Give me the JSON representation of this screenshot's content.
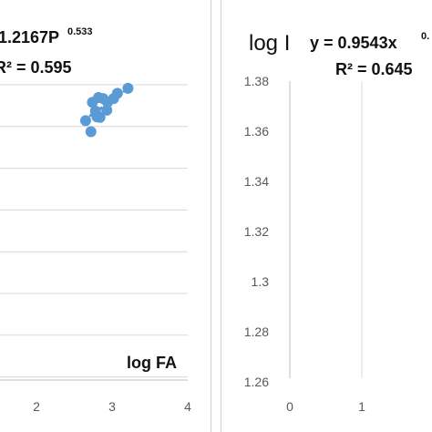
{
  "chart_data": [
    {
      "type": "scatter",
      "equation_main": "1.2167P",
      "equation_exp": "0.533",
      "r2_label": "R² = 0.595",
      "xlabel": "log FA",
      "x_ticks": [
        "2",
        "3",
        "4"
      ],
      "xlim": [
        1.05,
        4
      ],
      "grid": "horizontal",
      "trendline": "dotted",
      "color": "#5b9bd5",
      "points": [
        {
          "x": 2.65,
          "y": 0.74
        },
        {
          "x": 2.72,
          "y": 0.475
        },
        {
          "x": 2.74,
          "y": 1.18
        },
        {
          "x": 2.78,
          "y": 0.97
        },
        {
          "x": 2.8,
          "y": 0.83
        },
        {
          "x": 2.82,
          "y": 1.295
        },
        {
          "x": 2.84,
          "y": 0.82
        },
        {
          "x": 2.88,
          "y": 1.27
        },
        {
          "x": 2.93,
          "y": 0.99
        },
        {
          "x": 2.94,
          "y": 1.18
        },
        {
          "x": 3.02,
          "y": 1.27
        },
        {
          "x": 3.07,
          "y": 1.395
        },
        {
          "x": 3.21,
          "y": 1.515
        }
      ],
      "trend_line": [
        {
          "x": 2.65,
          "y": 0.78
        },
        {
          "x": 3.21,
          "y": 1.51
        }
      ]
    },
    {
      "type": "scatter",
      "ylabel": "log I",
      "equation_main": "y = 0.9543x",
      "equation_exp": "0.",
      "r2_label": "R² = 0.645",
      "x_ticks": [
        "0",
        "1"
      ],
      "y_ticks": [
        "1.38",
        "1.36",
        "1.34",
        "1.32",
        "1.3",
        "1.28",
        "1.26"
      ],
      "ylim": [
        1.26,
        1.38
      ],
      "xlim": [
        0,
        2
      ],
      "grid": "vertical",
      "color": "#5b9bd5",
      "points": []
    }
  ]
}
